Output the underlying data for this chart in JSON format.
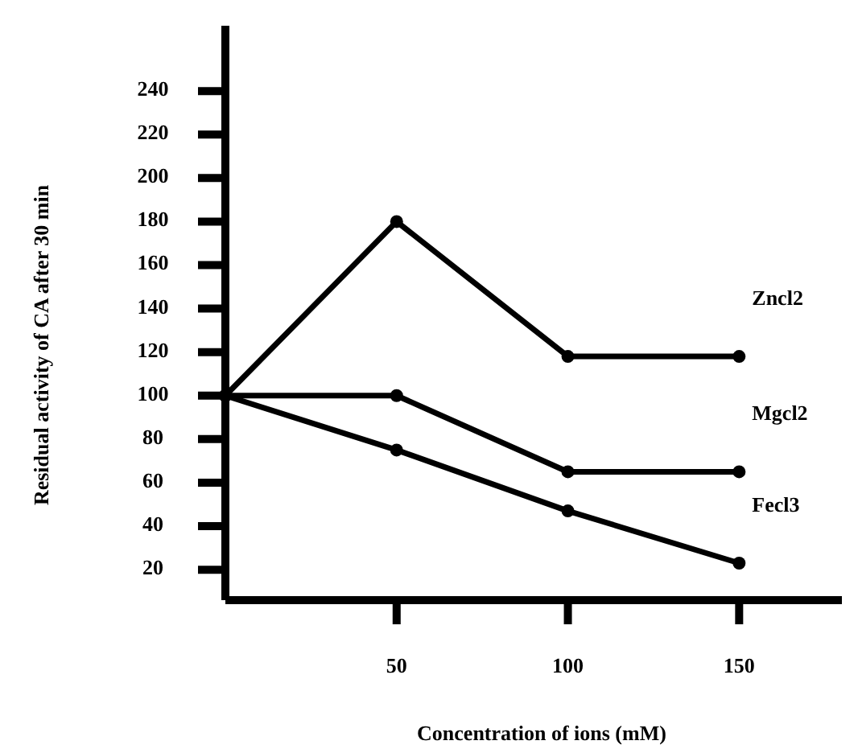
{
  "chart_data": {
    "type": "line",
    "xlabel": "Concentration of ions  (mM)",
    "ylabel": "Residual activity of CA after 30 min",
    "x": [
      0,
      50,
      100,
      150
    ],
    "xlim": [
      0,
      180
    ],
    "xticks": [
      50,
      100,
      150
    ],
    "ylim": [
      6,
      270
    ],
    "yticks": [
      20,
      40,
      60,
      80,
      100,
      120,
      140,
      160,
      180,
      200,
      220,
      240
    ],
    "series": [
      {
        "name": "Zncl2",
        "color": "#000000",
        "values": [
          100,
          180,
          118,
          118
        ]
      },
      {
        "name": "Mgcl2",
        "color": "#000000",
        "values": [
          100,
          100,
          65,
          65
        ]
      },
      {
        "name": "Fecl3",
        "color": "#000000",
        "values": [
          100,
          75,
          47,
          23
        ]
      }
    ],
    "marker": "circle",
    "line_style": "solid",
    "grid": false
  }
}
